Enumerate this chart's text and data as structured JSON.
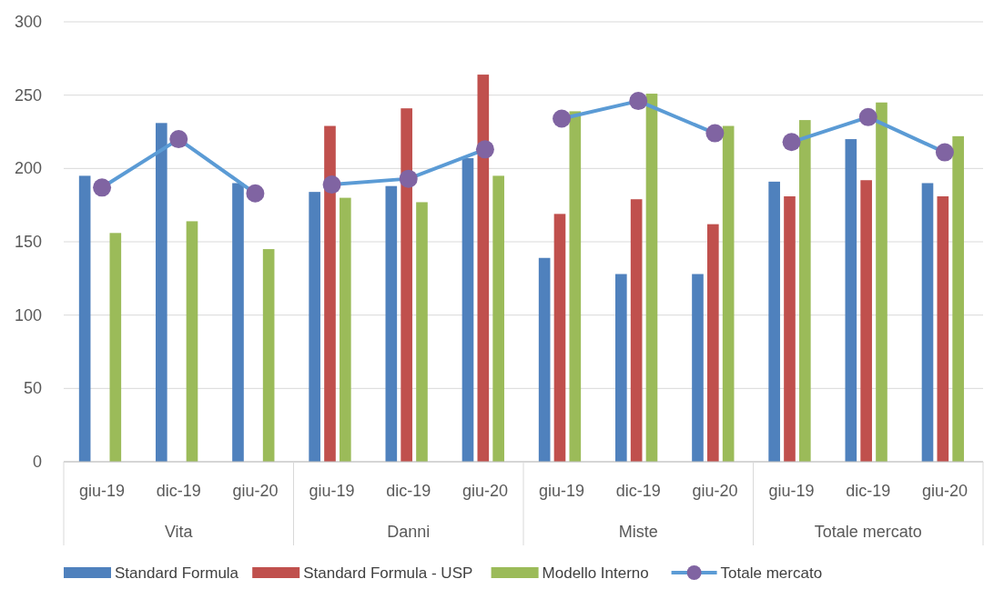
{
  "chart_data": {
    "type": "bar",
    "categories": [
      "giu-19",
      "dic-19",
      "giu-20",
      "giu-19",
      "dic-19",
      "giu-20",
      "giu-19",
      "dic-19",
      "giu-20",
      "giu-19",
      "dic-19",
      "giu-20"
    ],
    "annotations": [
      "Vita",
      "Danni",
      "Miste",
      "Totale mercato"
    ],
    "series": [
      {
        "name": "Standard Formula",
        "color": "#4f81bd",
        "values": [
          195,
          231,
          190,
          184,
          188,
          207,
          139,
          128,
          128,
          191,
          220,
          190
        ]
      },
      {
        "name": "Standard Formula - USP",
        "color": "#c0504d",
        "values": [
          null,
          null,
          null,
          229,
          241,
          264,
          169,
          179,
          162,
          181,
          192,
          181
        ]
      },
      {
        "name": "Modello Interno",
        "color": "#9bbb59",
        "values": [
          156,
          164,
          145,
          180,
          177,
          195,
          239,
          251,
          229,
          233,
          245,
          222
        ]
      },
      {
        "name": "Totale mercato",
        "type": "line",
        "color": "#5b9bd5",
        "colors": [
          "#8064a2",
          "#8064a2",
          "#8064a2",
          "#8064a2",
          "#8064a2",
          "#8064a2",
          "#8064a2",
          "#8064a2",
          "#8064a2",
          "#8064a2",
          "#8064a2",
          "#8064a2"
        ],
        "marker": "circle",
        "values": [
          187,
          220,
          183,
          189,
          193,
          213,
          234,
          246,
          224,
          218,
          235,
          211
        ]
      }
    ],
    "ylim": [
      0,
      300
    ],
    "yticks": [
      0,
      50,
      100,
      150,
      200,
      250,
      300
    ],
    "grid": "y",
    "legend": "bottom"
  }
}
